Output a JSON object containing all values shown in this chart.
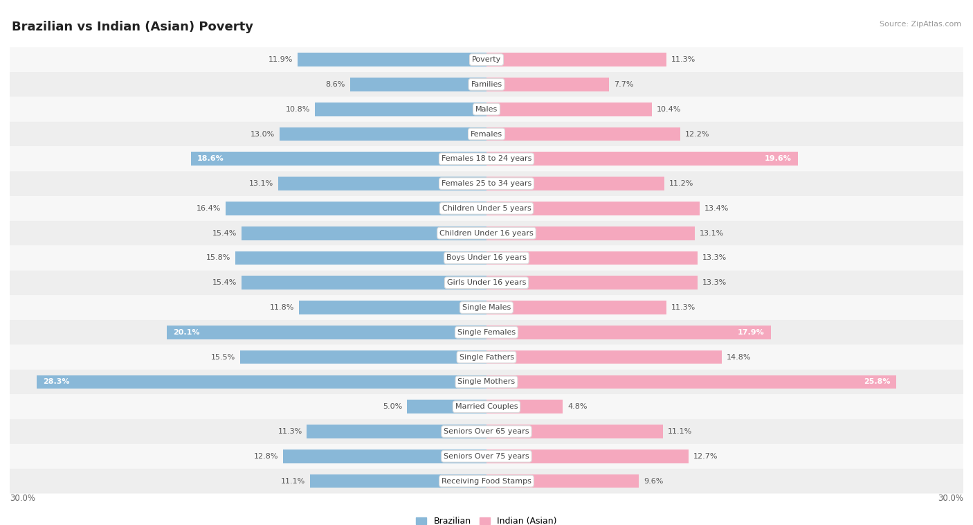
{
  "title": "Brazilian vs Indian (Asian) Poverty",
  "source": "Source: ZipAtlas.com",
  "categories": [
    "Poverty",
    "Families",
    "Males",
    "Females",
    "Females 18 to 24 years",
    "Females 25 to 34 years",
    "Children Under 5 years",
    "Children Under 16 years",
    "Boys Under 16 years",
    "Girls Under 16 years",
    "Single Males",
    "Single Females",
    "Single Fathers",
    "Single Mothers",
    "Married Couples",
    "Seniors Over 65 years",
    "Seniors Over 75 years",
    "Receiving Food Stamps"
  ],
  "brazilian": [
    11.9,
    8.6,
    10.8,
    13.0,
    18.6,
    13.1,
    16.4,
    15.4,
    15.8,
    15.4,
    11.8,
    20.1,
    15.5,
    28.3,
    5.0,
    11.3,
    12.8,
    11.1
  ],
  "indian": [
    11.3,
    7.7,
    10.4,
    12.2,
    19.6,
    11.2,
    13.4,
    13.1,
    13.3,
    13.3,
    11.3,
    17.9,
    14.8,
    25.8,
    4.8,
    11.1,
    12.7,
    9.6
  ],
  "max_val": 30.0,
  "blue_color": "#89b8d8",
  "pink_color": "#f5a8be",
  "bg_row_light": "#f7f7f7",
  "bg_row_dark": "#eeeeee",
  "bar_height": 0.55,
  "title_fontsize": 13,
  "value_fontsize": 8,
  "category_fontsize": 8,
  "inside_label_threshold": 17.0
}
